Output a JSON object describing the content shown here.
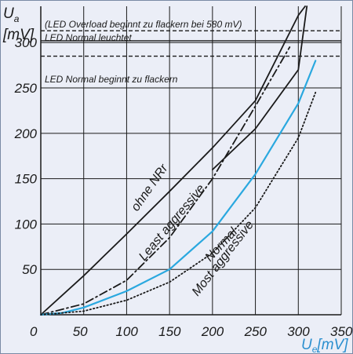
{
  "chart_data": {
    "type": "line",
    "ylabel": "U",
    "ylabel_sub": "a",
    "ylabel_unit": "[mV]",
    "xlabel": "U",
    "xlabel_sub": "e",
    "xlabel_unit": "[mV]",
    "xlim": [
      0,
      350
    ],
    "ylim": [
      0,
      340
    ],
    "xticks": [
      0,
      50,
      100,
      150,
      200,
      250,
      300,
      350
    ],
    "yticks": [
      50,
      100,
      150,
      200,
      250,
      300
    ],
    "grid": true,
    "series": [
      {
        "name": "ohne NRr",
        "style": "solid",
        "color": "#1a1a1a",
        "x": [
          0,
          50,
          100,
          150,
          200,
          250,
          300,
          308
        ],
        "y": [
          0,
          43,
          89,
          136,
          184,
          236,
          330,
          340
        ]
      },
      {
        "name": "Least aggressive",
        "style": "dashdot",
        "color": "#1a1a1a",
        "x": [
          0,
          50,
          100,
          150,
          200,
          250,
          290
        ],
        "y": [
          0,
          12,
          38,
          85,
          150,
          230,
          295
        ]
      },
      {
        "name": "Normal",
        "style": "solid",
        "color": "#2aa8df",
        "x": [
          0,
          25,
          50,
          100,
          150,
          200,
          250,
          300,
          320
        ],
        "y": [
          0,
          2,
          8,
          26,
          50,
          92,
          155,
          233,
          280
        ]
      },
      {
        "name": "Most aggressive",
        "style": "dotted",
        "color": "#1a1a1a",
        "x": [
          0,
          50,
          100,
          150,
          200,
          250,
          300,
          320
        ],
        "y": [
          0,
          4,
          16,
          36,
          68,
          118,
          195,
          245
        ]
      },
      {
        "name": "",
        "style": "solid",
        "color": "#1a1a1a",
        "x": [
          200,
          250,
          300,
          310
        ],
        "y": [
          160,
          205,
          270,
          340
        ]
      }
    ],
    "reference_lines": [
      {
        "y": 313,
        "style": "dashed",
        "label": "(LED Overload beginnt zu flackern bei 580 mV)"
      },
      {
        "y": 302,
        "style": "solid",
        "label": "LED Normal leuchtet"
      },
      {
        "y": 285,
        "style": "dashed",
        "label": "LED Normal beginnt zu flackern"
      }
    ]
  }
}
